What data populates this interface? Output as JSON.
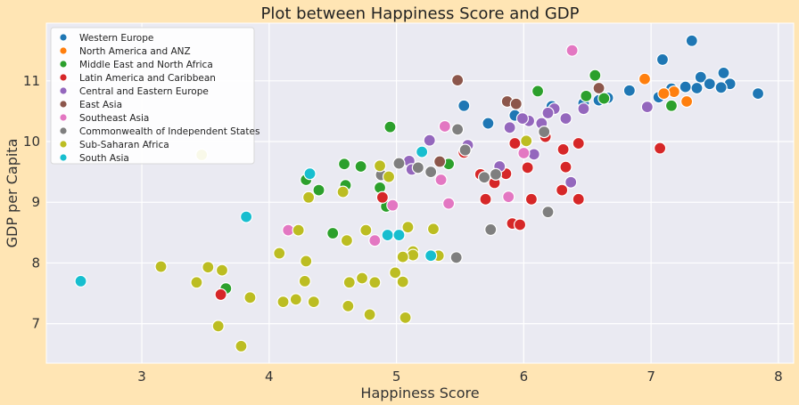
{
  "chart_data": {
    "type": "scatter",
    "title": "Plot between Happiness Score and GDP",
    "xlabel": "Happiness Score",
    "ylabel": "GDP per Capita",
    "xlim": [
      2.25,
      8.12
    ],
    "ylim": [
      6.35,
      11.95
    ],
    "xticks": [
      3,
      4,
      5,
      6,
      7,
      8
    ],
    "yticks": [
      7,
      8,
      9,
      10,
      11
    ],
    "grid": true,
    "legend_position": "top-left",
    "series": [
      {
        "name": "Western Europe",
        "color": "#1f77b4",
        "points": [
          [
            7.32,
            11.66
          ],
          [
            7.09,
            11.35
          ],
          [
            7.57,
            11.13
          ],
          [
            7.39,
            11.06
          ],
          [
            7.62,
            10.95
          ],
          [
            7.46,
            10.95
          ],
          [
            7.27,
            10.9
          ],
          [
            7.55,
            10.89
          ],
          [
            7.36,
            10.88
          ],
          [
            7.16,
            10.87
          ],
          [
            7.84,
            10.79
          ],
          [
            6.83,
            10.84
          ],
          [
            6.66,
            10.72
          ],
          [
            7.06,
            10.73
          ],
          [
            6.59,
            10.68
          ],
          [
            6.47,
            10.63
          ],
          [
            6.22,
            10.58
          ],
          [
            5.53,
            10.59
          ],
          [
            5.93,
            10.43
          ],
          [
            5.72,
            10.3
          ]
        ]
      },
      {
        "name": "North America and ANZ",
        "color": "#ff7f0e",
        "points": [
          [
            6.95,
            11.03
          ],
          [
            7.18,
            10.82
          ],
          [
            7.1,
            10.79
          ],
          [
            7.28,
            10.66
          ]
        ]
      },
      {
        "name": "Middle East and North Africa",
        "color": "#2ca02c",
        "points": [
          [
            6.56,
            11.09
          ],
          [
            6.11,
            10.83
          ],
          [
            6.49,
            10.75
          ],
          [
            6.63,
            10.71
          ],
          [
            7.16,
            10.59
          ],
          [
            4.95,
            10.24
          ],
          [
            5.41,
            9.63
          ],
          [
            4.59,
            9.63
          ],
          [
            4.72,
            9.59
          ],
          [
            4.29,
            9.37
          ],
          [
            4.6,
            9.28
          ],
          [
            4.39,
            9.2
          ],
          [
            4.87,
            9.24
          ],
          [
            4.92,
            8.93
          ],
          [
            4.5,
            8.49
          ],
          [
            3.66,
            7.58
          ]
        ]
      },
      {
        "name": "Latin America and Caribbean",
        "color": "#d62728",
        "points": [
          [
            6.17,
            10.08
          ],
          [
            5.93,
            9.97
          ],
          [
            6.43,
            9.97
          ],
          [
            5.53,
            9.82
          ],
          [
            6.31,
            9.87
          ],
          [
            6.03,
            9.57
          ],
          [
            6.33,
            9.58
          ],
          [
            5.66,
            9.46
          ],
          [
            5.86,
            9.47
          ],
          [
            5.77,
            9.32
          ],
          [
            4.89,
            9.08
          ],
          [
            5.7,
            9.05
          ],
          [
            6.06,
            9.05
          ],
          [
            6.3,
            9.2
          ],
          [
            6.43,
            9.05
          ],
          [
            7.07,
            9.89
          ],
          [
            5.91,
            8.65
          ],
          [
            5.97,
            8.63
          ],
          [
            3.62,
            7.48
          ]
        ]
      },
      {
        "name": "Central and Eastern Europe",
        "color": "#9467bd",
        "points": [
          [
            6.97,
            10.57
          ],
          [
            6.47,
            10.54
          ],
          [
            6.24,
            10.54
          ],
          [
            6.19,
            10.47
          ],
          [
            6.04,
            10.34
          ],
          [
            6.14,
            10.3
          ],
          [
            5.99,
            10.38
          ],
          [
            6.33,
            10.38
          ],
          [
            5.89,
            10.23
          ],
          [
            5.26,
            10.02
          ],
          [
            5.56,
            9.94
          ],
          [
            6.08,
            9.79
          ],
          [
            5.81,
            9.59
          ],
          [
            5.1,
            9.68
          ],
          [
            5.12,
            9.54
          ],
          [
            6.37,
            9.33
          ]
        ]
      },
      {
        "name": "East Asia",
        "color": "#8c564b",
        "points": [
          [
            5.48,
            11.01
          ],
          [
            6.59,
            10.88
          ],
          [
            5.87,
            10.66
          ],
          [
            5.94,
            10.62
          ],
          [
            5.34,
            9.67
          ]
        ]
      },
      {
        "name": "Southeast Asia",
        "color": "#e377c2",
        "points": [
          [
            6.38,
            11.5
          ],
          [
            5.38,
            10.25
          ],
          [
            6.0,
            9.81
          ],
          [
            5.88,
            9.09
          ],
          [
            5.35,
            9.37
          ],
          [
            4.97,
            8.95
          ],
          [
            5.41,
            8.98
          ],
          [
            4.15,
            8.54
          ],
          [
            4.83,
            8.37
          ]
        ]
      },
      {
        "name": "Commonwealth of Independent States",
        "color": "#7f7f7f",
        "points": [
          [
            5.48,
            10.2
          ],
          [
            6.16,
            10.16
          ],
          [
            5.54,
            9.86
          ],
          [
            5.02,
            9.64
          ],
          [
            5.17,
            9.57
          ],
          [
            5.27,
            9.5
          ],
          [
            5.78,
            9.46
          ],
          [
            5.69,
            9.41
          ],
          [
            4.88,
            9.45
          ],
          [
            6.19,
            8.84
          ],
          [
            5.74,
            8.55
          ],
          [
            5.47,
            8.09
          ]
        ]
      },
      {
        "name": "Sub-Saharan Africa",
        "color": "#bcbd22",
        "points": [
          [
            6.02,
            10.01
          ],
          [
            3.47,
            9.78
          ],
          [
            4.87,
            9.6
          ],
          [
            4.94,
            9.42
          ],
          [
            4.58,
            9.17
          ],
          [
            4.31,
            9.08
          ],
          [
            4.23,
            8.54
          ],
          [
            4.76,
            8.54
          ],
          [
            5.29,
            8.56
          ],
          [
            5.09,
            8.59
          ],
          [
            4.61,
            8.37
          ],
          [
            5.13,
            8.19
          ],
          [
            5.13,
            8.13
          ],
          [
            5.33,
            8.12
          ],
          [
            4.08,
            8.16
          ],
          [
            5.05,
            8.1
          ],
          [
            4.29,
            8.03
          ],
          [
            3.15,
            7.94
          ],
          [
            3.52,
            7.93
          ],
          [
            3.63,
            7.88
          ],
          [
            4.99,
            7.84
          ],
          [
            3.43,
            7.68
          ],
          [
            4.28,
            7.7
          ],
          [
            4.63,
            7.68
          ],
          [
            4.73,
            7.75
          ],
          [
            4.83,
            7.68
          ],
          [
            5.05,
            7.69
          ],
          [
            3.85,
            7.43
          ],
          [
            4.21,
            7.4
          ],
          [
            4.11,
            7.36
          ],
          [
            4.35,
            7.36
          ],
          [
            4.62,
            7.29
          ],
          [
            4.79,
            7.15
          ],
          [
            5.07,
            7.1
          ],
          [
            3.6,
            6.96
          ],
          [
            3.78,
            6.63
          ]
        ]
      },
      {
        "name": "South Asia",
        "color": "#17becf",
        "points": [
          [
            5.2,
            9.83
          ],
          [
            4.32,
            9.47
          ],
          [
            3.82,
            8.76
          ],
          [
            4.93,
            8.46
          ],
          [
            5.02,
            8.46
          ],
          [
            5.27,
            8.12
          ],
          [
            2.52,
            7.7
          ]
        ]
      }
    ]
  }
}
